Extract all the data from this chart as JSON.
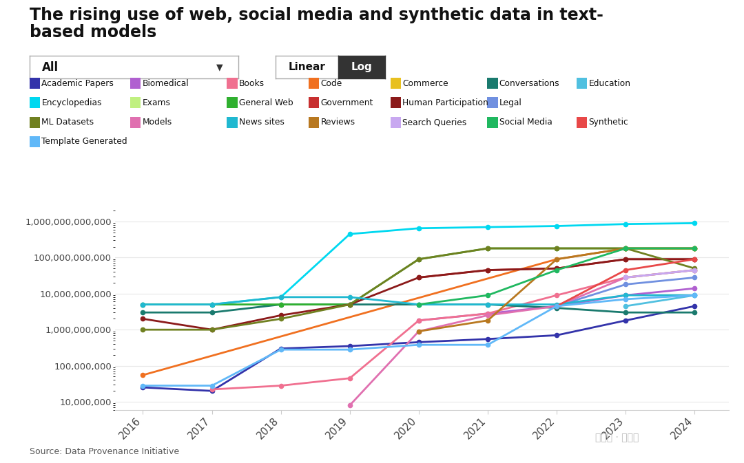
{
  "title_line1": "The rising use of web, social media and synthetic data in text-",
  "title_line2": "based models",
  "source": "Source: Data Provenance Initiative",
  "years": [
    2016,
    2017,
    2018,
    2019,
    2020,
    2021,
    2022,
    2023,
    2024
  ],
  "series": {
    "Academic Papers": {
      "color": "#3333aa",
      "data": [
        25000000,
        20000000,
        300000000,
        350000000,
        450000000,
        550000000,
        700000000,
        1800000000,
        4500000000
      ]
    },
    "Biomedical": {
      "color": "#b060d0",
      "data": [
        null,
        null,
        null,
        null,
        1800000000,
        2800000000,
        4500000000,
        9000000000,
        14000000000
      ]
    },
    "Books": {
      "color": "#f07090",
      "data": [
        null,
        22000000,
        28000000,
        45000000,
        1800000000,
        2800000000,
        9000000000,
        28000000000,
        45000000000
      ]
    },
    "Code": {
      "color": "#f07020",
      "data": [
        55000000,
        null,
        null,
        null,
        null,
        null,
        90000000000,
        180000000000,
        180000000000
      ]
    },
    "Commerce": {
      "color": "#e8c020",
      "data": [
        null,
        null,
        null,
        null,
        null,
        null,
        null,
        180000000000,
        180000000000
      ]
    },
    "Conversations": {
      "color": "#1a7a6e",
      "data": [
        3000000000,
        3000000000,
        5000000000,
        5000000000,
        5000000000,
        5000000000,
        4000000000,
        3000000000,
        3000000000
      ]
    },
    "Education": {
      "color": "#50c0e0",
      "data": [
        null,
        null,
        null,
        null,
        null,
        null,
        null,
        4500000000,
        9000000000
      ]
    },
    "Encyclopedias": {
      "color": "#00d8f0",
      "data": [
        5000000000,
        5000000000,
        8000000000,
        450000000000,
        650000000000,
        700000000000,
        750000000000,
        850000000000,
        900000000000
      ]
    },
    "Exams": {
      "color": "#c0f080",
      "data": [
        null,
        null,
        null,
        null,
        null,
        null,
        null,
        28000000000,
        45000000000
      ]
    },
    "General Web": {
      "color": "#30b030",
      "data": [
        5000000000,
        5000000000,
        5000000000,
        5000000000,
        90000000000,
        180000000000,
        180000000000,
        180000000000,
        180000000000
      ]
    },
    "Government": {
      "color": "#c83030",
      "data": [
        null,
        null,
        null,
        null,
        28000000000,
        45000000000,
        50000000000,
        90000000000,
        90000000000
      ]
    },
    "Human Participation": {
      "color": "#8b1a1a",
      "data": [
        2000000000,
        1000000000,
        2500000000,
        5000000000,
        28000000000,
        45000000000,
        50000000000,
        90000000000,
        90000000000
      ]
    },
    "Legal": {
      "color": "#7090e0",
      "data": [
        null,
        null,
        null,
        null,
        null,
        null,
        4500000000,
        18000000000,
        28000000000
      ]
    },
    "ML Datasets": {
      "color": "#708020",
      "data": [
        1000000000,
        1000000000,
        2000000000,
        5000000000,
        90000000000,
        180000000000,
        180000000000,
        180000000000,
        50000000000
      ]
    },
    "Models": {
      "color": "#e070b0",
      "data": [
        null,
        null,
        null,
        8000000,
        900000000,
        2500000000,
        4500000000,
        28000000000,
        45000000000
      ]
    },
    "News sites": {
      "color": "#20b8d0",
      "data": [
        5000000000,
        5000000000,
        8000000000,
        8000000000,
        5000000000,
        5000000000,
        5000000000,
        9000000000,
        9000000000
      ]
    },
    "Reviews": {
      "color": "#b87820",
      "data": [
        null,
        null,
        null,
        null,
        900000000,
        1800000000,
        90000000000,
        180000000000,
        180000000000
      ]
    },
    "Search Queries": {
      "color": "#c8a8f0",
      "data": [
        null,
        null,
        null,
        null,
        null,
        null,
        null,
        28000000000,
        45000000000
      ]
    },
    "Social Media": {
      "color": "#20b860",
      "data": [
        null,
        null,
        null,
        null,
        5000000000,
        9000000000,
        45000000000,
        180000000000,
        180000000000
      ]
    },
    "Synthetic": {
      "color": "#e84848",
      "data": [
        null,
        null,
        null,
        null,
        null,
        null,
        4500000000,
        45000000000,
        90000000000
      ]
    },
    "Template Generated": {
      "color": "#60b8f8",
      "data": [
        28000000,
        28000000,
        280000000,
        280000000,
        380000000,
        380000000,
        4500000000,
        7000000000,
        9000000000
      ]
    }
  },
  "ylim_log": [
    6000000,
    2000000000000
  ],
  "yticks": [
    10000000,
    100000000,
    1000000000,
    10000000000,
    100000000000,
    1000000000000
  ],
  "ylabels": [
    "10,000,000",
    "100,000,000",
    "1,000,000,000",
    "10,000,000,000",
    "100,000,000,000",
    "1,000,000,000,000"
  ],
  "background_color": "#ffffff",
  "grid_color": "#e8e8e8",
  "watermark": "公众号 · 新智元"
}
